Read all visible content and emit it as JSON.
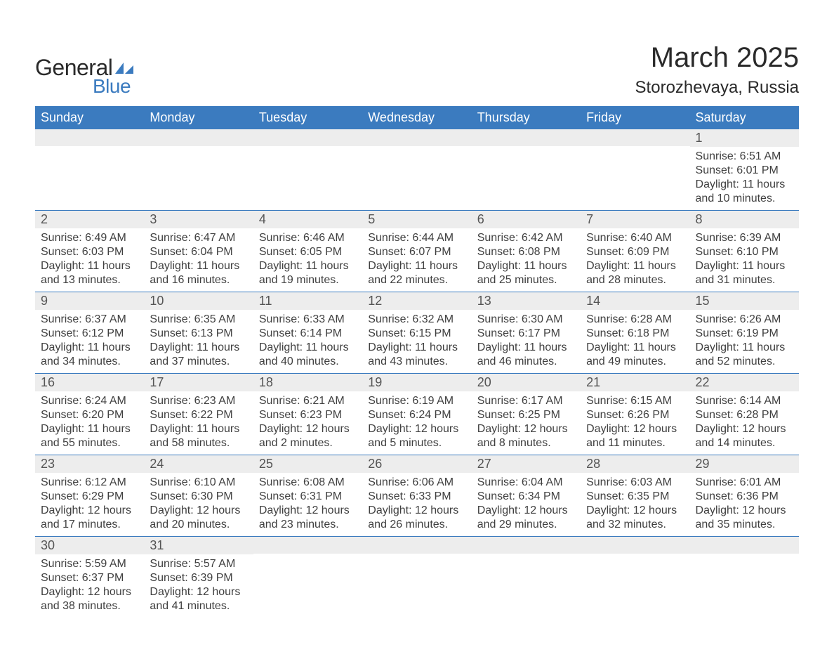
{
  "brand": {
    "name1": "General",
    "name2": "Blue",
    "shape_color": "#3b7bbf"
  },
  "title": "March 2025",
  "location": "Storozhevaya, Russia",
  "colors": {
    "header_bg": "#3b7bbf",
    "header_text": "#ffffff",
    "daynum_bg": "#ededed",
    "daynum_text": "#555555",
    "border": "#3b7bbf",
    "body_text": "#404040"
  },
  "typography": {
    "title_fontsize": 40,
    "location_fontsize": 24,
    "header_fontsize": 18,
    "daynum_fontsize": 18,
    "body_fontsize": 16
  },
  "layout": {
    "cols": 7,
    "rows": 6
  },
  "weekdays": [
    "Sunday",
    "Monday",
    "Tuesday",
    "Wednesday",
    "Thursday",
    "Friday",
    "Saturday"
  ],
  "labels": {
    "sunrise": "Sunrise:",
    "sunset": "Sunset:",
    "daylight": "Daylight:"
  },
  "weeks": [
    [
      {
        "empty": true
      },
      {
        "empty": true
      },
      {
        "empty": true
      },
      {
        "empty": true
      },
      {
        "empty": true
      },
      {
        "empty": true
      },
      {
        "day": "1",
        "sunrise": "6:51 AM",
        "sunset": "6:01 PM",
        "daylight": "11 hours and 10 minutes."
      }
    ],
    [
      {
        "day": "2",
        "sunrise": "6:49 AM",
        "sunset": "6:03 PM",
        "daylight": "11 hours and 13 minutes."
      },
      {
        "day": "3",
        "sunrise": "6:47 AM",
        "sunset": "6:04 PM",
        "daylight": "11 hours and 16 minutes."
      },
      {
        "day": "4",
        "sunrise": "6:46 AM",
        "sunset": "6:05 PM",
        "daylight": "11 hours and 19 minutes."
      },
      {
        "day": "5",
        "sunrise": "6:44 AM",
        "sunset": "6:07 PM",
        "daylight": "11 hours and 22 minutes."
      },
      {
        "day": "6",
        "sunrise": "6:42 AM",
        "sunset": "6:08 PM",
        "daylight": "11 hours and 25 minutes."
      },
      {
        "day": "7",
        "sunrise": "6:40 AM",
        "sunset": "6:09 PM",
        "daylight": "11 hours and 28 minutes."
      },
      {
        "day": "8",
        "sunrise": "6:39 AM",
        "sunset": "6:10 PM",
        "daylight": "11 hours and 31 minutes."
      }
    ],
    [
      {
        "day": "9",
        "sunrise": "6:37 AM",
        "sunset": "6:12 PM",
        "daylight": "11 hours and 34 minutes."
      },
      {
        "day": "10",
        "sunrise": "6:35 AM",
        "sunset": "6:13 PM",
        "daylight": "11 hours and 37 minutes."
      },
      {
        "day": "11",
        "sunrise": "6:33 AM",
        "sunset": "6:14 PM",
        "daylight": "11 hours and 40 minutes."
      },
      {
        "day": "12",
        "sunrise": "6:32 AM",
        "sunset": "6:15 PM",
        "daylight": "11 hours and 43 minutes."
      },
      {
        "day": "13",
        "sunrise": "6:30 AM",
        "sunset": "6:17 PM",
        "daylight": "11 hours and 46 minutes."
      },
      {
        "day": "14",
        "sunrise": "6:28 AM",
        "sunset": "6:18 PM",
        "daylight": "11 hours and 49 minutes."
      },
      {
        "day": "15",
        "sunrise": "6:26 AM",
        "sunset": "6:19 PM",
        "daylight": "11 hours and 52 minutes."
      }
    ],
    [
      {
        "day": "16",
        "sunrise": "6:24 AM",
        "sunset": "6:20 PM",
        "daylight": "11 hours and 55 minutes."
      },
      {
        "day": "17",
        "sunrise": "6:23 AM",
        "sunset": "6:22 PM",
        "daylight": "11 hours and 58 minutes."
      },
      {
        "day": "18",
        "sunrise": "6:21 AM",
        "sunset": "6:23 PM",
        "daylight": "12 hours and 2 minutes."
      },
      {
        "day": "19",
        "sunrise": "6:19 AM",
        "sunset": "6:24 PM",
        "daylight": "12 hours and 5 minutes."
      },
      {
        "day": "20",
        "sunrise": "6:17 AM",
        "sunset": "6:25 PM",
        "daylight": "12 hours and 8 minutes."
      },
      {
        "day": "21",
        "sunrise": "6:15 AM",
        "sunset": "6:26 PM",
        "daylight": "12 hours and 11 minutes."
      },
      {
        "day": "22",
        "sunrise": "6:14 AM",
        "sunset": "6:28 PM",
        "daylight": "12 hours and 14 minutes."
      }
    ],
    [
      {
        "day": "23",
        "sunrise": "6:12 AM",
        "sunset": "6:29 PM",
        "daylight": "12 hours and 17 minutes."
      },
      {
        "day": "24",
        "sunrise": "6:10 AM",
        "sunset": "6:30 PM",
        "daylight": "12 hours and 20 minutes."
      },
      {
        "day": "25",
        "sunrise": "6:08 AM",
        "sunset": "6:31 PM",
        "daylight": "12 hours and 23 minutes."
      },
      {
        "day": "26",
        "sunrise": "6:06 AM",
        "sunset": "6:33 PM",
        "daylight": "12 hours and 26 minutes."
      },
      {
        "day": "27",
        "sunrise": "6:04 AM",
        "sunset": "6:34 PM",
        "daylight": "12 hours and 29 minutes."
      },
      {
        "day": "28",
        "sunrise": "6:03 AM",
        "sunset": "6:35 PM",
        "daylight": "12 hours and 32 minutes."
      },
      {
        "day": "29",
        "sunrise": "6:01 AM",
        "sunset": "6:36 PM",
        "daylight": "12 hours and 35 minutes."
      }
    ],
    [
      {
        "day": "30",
        "sunrise": "5:59 AM",
        "sunset": "6:37 PM",
        "daylight": "12 hours and 38 minutes."
      },
      {
        "day": "31",
        "sunrise": "5:57 AM",
        "sunset": "6:39 PM",
        "daylight": "12 hours and 41 minutes."
      },
      {
        "empty": true
      },
      {
        "empty": true
      },
      {
        "empty": true
      },
      {
        "empty": true
      },
      {
        "empty": true
      }
    ]
  ]
}
